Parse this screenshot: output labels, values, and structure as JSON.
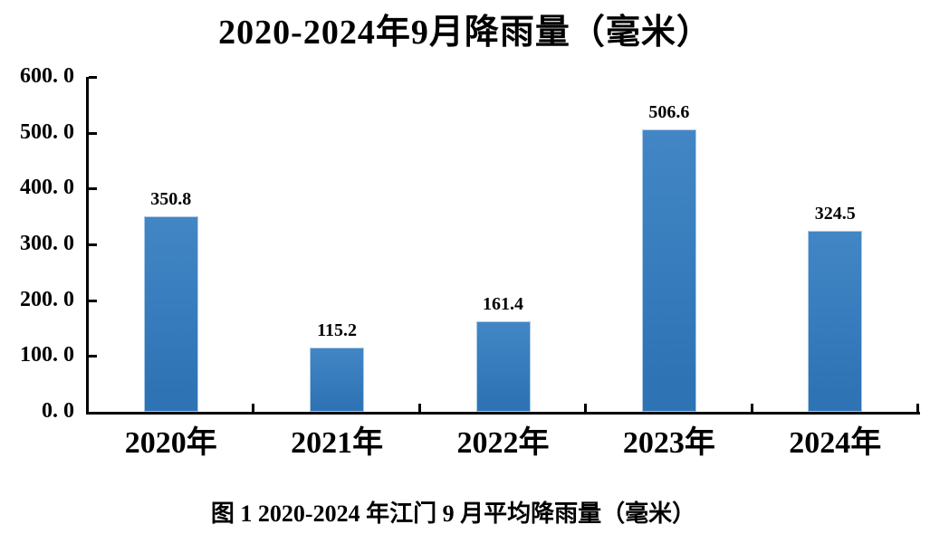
{
  "page": {
    "background": "#ffffff"
  },
  "chart_data": {
    "type": "bar",
    "title": "2020-2024年9月降雨量（毫米）",
    "caption": "图 1 2020-2024 年江门 9 月平均降雨量（毫米）",
    "categories": [
      "2020年",
      "2021年",
      "2022年",
      "2023年",
      "2024年"
    ],
    "values": [
      350.8,
      115.2,
      161.4,
      506.6,
      324.5
    ],
    "data_labels": [
      "350.8",
      "115.2",
      "161.4",
      "506.6",
      "324.5"
    ],
    "series_name": "9月降雨量（毫米）",
    "xlabel": "",
    "ylabel": "",
    "ylim": [
      0,
      600
    ],
    "y_tick_interval": 100,
    "y_tick_labels": [
      "600. 0",
      "500. 0",
      "400. 0",
      "300. 0",
      "200. 0",
      "100. 0",
      "0. 0"
    ],
    "grid": false,
    "legend": "none",
    "colors": {
      "bar_fill": "#2E74B5",
      "bar_fill_light": "#4286C5",
      "bar_border": "#AECBE8",
      "axis": "#000000",
      "text": "#000000"
    }
  }
}
